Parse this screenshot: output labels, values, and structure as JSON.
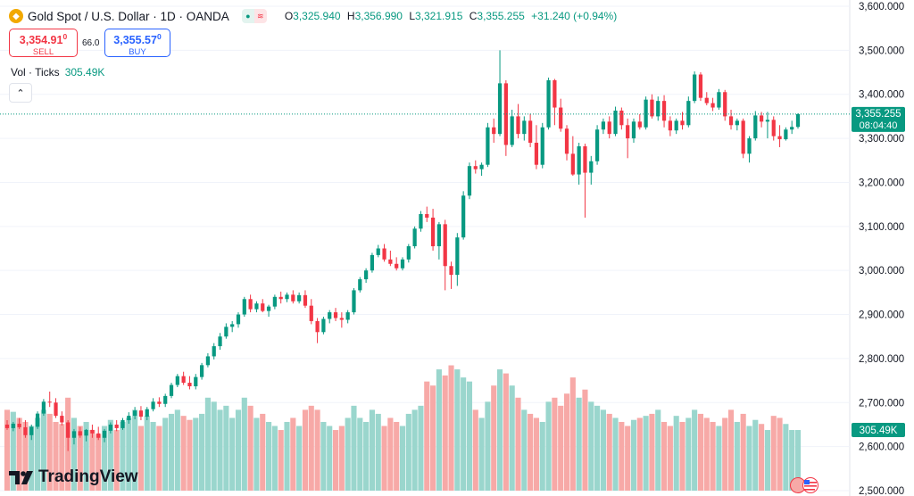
{
  "header": {
    "symbol_icon": "gold-coin-icon",
    "title": "Gold Spot / U.S. Dollar · 1D · OANDA",
    "ohlc": {
      "o_label": "O",
      "o": "3,325.940",
      "h_label": "H",
      "h": "3,356.990",
      "l_label": "L",
      "l": "3,321.915",
      "c_label": "C",
      "c": "3,355.255",
      "change": "+31.240 (+0.94%)"
    }
  },
  "trade": {
    "sell_price_main": "3,354.91",
    "sell_price_sup": "0",
    "sell_label": "SELL",
    "spread": "66.0",
    "buy_price_main": "3,355.57",
    "buy_price_sup": "0",
    "buy_label": "BUY"
  },
  "volume_legend": {
    "label": "Vol · Ticks",
    "value": "305.49K"
  },
  "brand": {
    "name": "TradingView"
  },
  "colors": {
    "up": "#089981",
    "down": "#f23645",
    "vol_up": "#9ad6cd",
    "vol_down": "#f7a9a7",
    "grid": "#f0f3fa"
  },
  "chart_data": {
    "type": "candlestick",
    "title": "Gold Spot / U.S. Dollar · 1D · OANDA",
    "ylim": [
      2500,
      3600
    ],
    "y_tick_labels": [
      "3,600.000",
      "3,500.000",
      "3,400.000",
      "3,300.000",
      "3,200.000",
      "3,100.000",
      "3,000.000",
      "2,900.000",
      "2,800.000",
      "2,700.000",
      "2,600.000",
      "2,500.000"
    ],
    "y_ticks": [
      3600,
      3500,
      3400,
      3300,
      3200,
      3100,
      3000,
      2900,
      2800,
      2700,
      2600,
      2500
    ],
    "last_price_label": "3,355.255",
    "last_price_value": 3355.255,
    "countdown": "08:04:40",
    "volume_label": "305.49K",
    "volume_max": 320,
    "candles": [
      {
        "o": 2650,
        "h": 2660,
        "l": 2638,
        "c": 2642,
        "v": 200
      },
      {
        "o": 2642,
        "h": 2656,
        "l": 2635,
        "c": 2652,
        "v": 195
      },
      {
        "o": 2652,
        "h": 2665,
        "l": 2640,
        "c": 2644,
        "v": 180
      },
      {
        "o": 2644,
        "h": 2660,
        "l": 2620,
        "c": 2626,
        "v": 170
      },
      {
        "o": 2626,
        "h": 2650,
        "l": 2615,
        "c": 2645,
        "v": 160
      },
      {
        "o": 2645,
        "h": 2680,
        "l": 2640,
        "c": 2675,
        "v": 180
      },
      {
        "o": 2675,
        "h": 2708,
        "l": 2670,
        "c": 2702,
        "v": 200
      },
      {
        "o": 2702,
        "h": 2725,
        "l": 2690,
        "c": 2700,
        "v": 190
      },
      {
        "o": 2700,
        "h": 2710,
        "l": 2665,
        "c": 2670,
        "v": 170
      },
      {
        "o": 2670,
        "h": 2680,
        "l": 2648,
        "c": 2655,
        "v": 165
      },
      {
        "o": 2655,
        "h": 2660,
        "l": 2590,
        "c": 2620,
        "v": 230
      },
      {
        "o": 2620,
        "h": 2640,
        "l": 2605,
        "c": 2635,
        "v": 180
      },
      {
        "o": 2635,
        "h": 2645,
        "l": 2620,
        "c": 2625,
        "v": 160
      },
      {
        "o": 2625,
        "h": 2640,
        "l": 2612,
        "c": 2638,
        "v": 170
      },
      {
        "o": 2638,
        "h": 2650,
        "l": 2620,
        "c": 2630,
        "v": 150
      },
      {
        "o": 2630,
        "h": 2645,
        "l": 2615,
        "c": 2620,
        "v": 140
      },
      {
        "o": 2620,
        "h": 2640,
        "l": 2610,
        "c": 2636,
        "v": 160
      },
      {
        "o": 2636,
        "h": 2655,
        "l": 2630,
        "c": 2650,
        "v": 175
      },
      {
        "o": 2650,
        "h": 2660,
        "l": 2635,
        "c": 2642,
        "v": 150
      },
      {
        "o": 2642,
        "h": 2665,
        "l": 2638,
        "c": 2660,
        "v": 170
      },
      {
        "o": 2660,
        "h": 2678,
        "l": 2652,
        "c": 2670,
        "v": 180
      },
      {
        "o": 2670,
        "h": 2690,
        "l": 2662,
        "c": 2682,
        "v": 200
      },
      {
        "o": 2682,
        "h": 2692,
        "l": 2660,
        "c": 2668,
        "v": 160
      },
      {
        "o": 2668,
        "h": 2690,
        "l": 2660,
        "c": 2685,
        "v": 185
      },
      {
        "o": 2685,
        "h": 2710,
        "l": 2680,
        "c": 2702,
        "v": 170
      },
      {
        "o": 2702,
        "h": 2712,
        "l": 2690,
        "c": 2697,
        "v": 160
      },
      {
        "o": 2697,
        "h": 2720,
        "l": 2690,
        "c": 2715,
        "v": 180
      },
      {
        "o": 2715,
        "h": 2745,
        "l": 2710,
        "c": 2740,
        "v": 190
      },
      {
        "o": 2740,
        "h": 2765,
        "l": 2735,
        "c": 2760,
        "v": 200
      },
      {
        "o": 2760,
        "h": 2770,
        "l": 2740,
        "c": 2745,
        "v": 185
      },
      {
        "o": 2745,
        "h": 2760,
        "l": 2730,
        "c": 2737,
        "v": 175
      },
      {
        "o": 2737,
        "h": 2765,
        "l": 2730,
        "c": 2758,
        "v": 180
      },
      {
        "o": 2758,
        "h": 2790,
        "l": 2752,
        "c": 2785,
        "v": 190
      },
      {
        "o": 2785,
        "h": 2812,
        "l": 2780,
        "c": 2805,
        "v": 230
      },
      {
        "o": 2805,
        "h": 2835,
        "l": 2798,
        "c": 2828,
        "v": 220
      },
      {
        "o": 2828,
        "h": 2858,
        "l": 2820,
        "c": 2850,
        "v": 200
      },
      {
        "o": 2850,
        "h": 2880,
        "l": 2845,
        "c": 2872,
        "v": 210
      },
      {
        "o": 2872,
        "h": 2885,
        "l": 2860,
        "c": 2878,
        "v": 180
      },
      {
        "o": 2878,
        "h": 2905,
        "l": 2870,
        "c": 2900,
        "v": 200
      },
      {
        "o": 2900,
        "h": 2940,
        "l": 2895,
        "c": 2935,
        "v": 230
      },
      {
        "o": 2935,
        "h": 2945,
        "l": 2905,
        "c": 2912,
        "v": 210
      },
      {
        "o": 2912,
        "h": 2930,
        "l": 2905,
        "c": 2925,
        "v": 180
      },
      {
        "o": 2925,
        "h": 2935,
        "l": 2905,
        "c": 2908,
        "v": 190
      },
      {
        "o": 2908,
        "h": 2922,
        "l": 2895,
        "c": 2918,
        "v": 170
      },
      {
        "o": 2918,
        "h": 2945,
        "l": 2912,
        "c": 2940,
        "v": 160
      },
      {
        "o": 2940,
        "h": 2952,
        "l": 2925,
        "c": 2935,
        "v": 150
      },
      {
        "o": 2935,
        "h": 2950,
        "l": 2928,
        "c": 2945,
        "v": 170
      },
      {
        "o": 2945,
        "h": 2955,
        "l": 2925,
        "c": 2930,
        "v": 180
      },
      {
        "o": 2930,
        "h": 2950,
        "l": 2925,
        "c": 2944,
        "v": 160
      },
      {
        "o": 2944,
        "h": 2955,
        "l": 2915,
        "c": 2920,
        "v": 200
      },
      {
        "o": 2920,
        "h": 2935,
        "l": 2878,
        "c": 2885,
        "v": 210
      },
      {
        "o": 2885,
        "h": 2892,
        "l": 2835,
        "c": 2860,
        "v": 200
      },
      {
        "o": 2860,
        "h": 2895,
        "l": 2855,
        "c": 2890,
        "v": 170
      },
      {
        "o": 2890,
        "h": 2910,
        "l": 2880,
        "c": 2905,
        "v": 160
      },
      {
        "o": 2905,
        "h": 2915,
        "l": 2885,
        "c": 2892,
        "v": 150
      },
      {
        "o": 2892,
        "h": 2905,
        "l": 2870,
        "c": 2888,
        "v": 160
      },
      {
        "o": 2888,
        "h": 2910,
        "l": 2880,
        "c": 2905,
        "v": 180
      },
      {
        "o": 2905,
        "h": 2960,
        "l": 2900,
        "c": 2955,
        "v": 210
      },
      {
        "o": 2955,
        "h": 2985,
        "l": 2950,
        "c": 2980,
        "v": 180
      },
      {
        "o": 2980,
        "h": 3005,
        "l": 2972,
        "c": 3000,
        "v": 170
      },
      {
        "o": 3000,
        "h": 3040,
        "l": 2995,
        "c": 3035,
        "v": 200
      },
      {
        "o": 3035,
        "h": 3058,
        "l": 3030,
        "c": 3050,
        "v": 190
      },
      {
        "o": 3050,
        "h": 3060,
        "l": 3020,
        "c": 3025,
        "v": 160
      },
      {
        "o": 3025,
        "h": 3045,
        "l": 3010,
        "c": 3015,
        "v": 180
      },
      {
        "o": 3015,
        "h": 3030,
        "l": 3000,
        "c": 3005,
        "v": 170
      },
      {
        "o": 3005,
        "h": 3030,
        "l": 3000,
        "c": 3025,
        "v": 160
      },
      {
        "o": 3025,
        "h": 3060,
        "l": 3018,
        "c": 3055,
        "v": 190
      },
      {
        "o": 3055,
        "h": 3100,
        "l": 3050,
        "c": 3095,
        "v": 200
      },
      {
        "o": 3095,
        "h": 3135,
        "l": 3088,
        "c": 3128,
        "v": 210
      },
      {
        "o": 3128,
        "h": 3145,
        "l": 3110,
        "c": 3120,
        "v": 270
      },
      {
        "o": 3120,
        "h": 3140,
        "l": 3045,
        "c": 3055,
        "v": 260
      },
      {
        "o": 3055,
        "h": 3110,
        "l": 3025,
        "c": 3105,
        "v": 300
      },
      {
        "o": 3105,
        "h": 3115,
        "l": 2955,
        "c": 3010,
        "v": 285
      },
      {
        "o": 3010,
        "h": 3020,
        "l": 2958,
        "c": 2990,
        "v": 310
      },
      {
        "o": 2990,
        "h": 3085,
        "l": 2965,
        "c": 3075,
        "v": 300
      },
      {
        "o": 3075,
        "h": 3180,
        "l": 3070,
        "c": 3170,
        "v": 280
      },
      {
        "o": 3170,
        "h": 3245,
        "l": 3162,
        "c": 3237,
        "v": 270
      },
      {
        "o": 3237,
        "h": 3250,
        "l": 3220,
        "c": 3230,
        "v": 200
      },
      {
        "o": 3230,
        "h": 3245,
        "l": 3215,
        "c": 3240,
        "v": 180
      },
      {
        "o": 3240,
        "h": 3335,
        "l": 3235,
        "c": 3325,
        "v": 220
      },
      {
        "o": 3325,
        "h": 3345,
        "l": 3290,
        "c": 3310,
        "v": 260
      },
      {
        "o": 3310,
        "h": 3500,
        "l": 3305,
        "c": 3425,
        "v": 300
      },
      {
        "o": 3425,
        "h": 3432,
        "l": 3260,
        "c": 3285,
        "v": 290
      },
      {
        "o": 3285,
        "h": 3365,
        "l": 3280,
        "c": 3350,
        "v": 260
      },
      {
        "o": 3350,
        "h": 3378,
        "l": 3300,
        "c": 3310,
        "v": 230
      },
      {
        "o": 3310,
        "h": 3350,
        "l": 3295,
        "c": 3340,
        "v": 200
      },
      {
        "o": 3340,
        "h": 3356,
        "l": 3280,
        "c": 3290,
        "v": 190
      },
      {
        "o": 3290,
        "h": 3330,
        "l": 3230,
        "c": 3240,
        "v": 180
      },
      {
        "o": 3240,
        "h": 3335,
        "l": 3232,
        "c": 3325,
        "v": 170
      },
      {
        "o": 3325,
        "h": 3438,
        "l": 3320,
        "c": 3432,
        "v": 220
      },
      {
        "o": 3432,
        "h": 3435,
        "l": 3330,
        "c": 3370,
        "v": 230
      },
      {
        "o": 3370,
        "h": 3390,
        "l": 3315,
        "c": 3322,
        "v": 210
      },
      {
        "o": 3322,
        "h": 3330,
        "l": 3250,
        "c": 3265,
        "v": 240
      },
      {
        "o": 3265,
        "h": 3305,
        "l": 3215,
        "c": 3218,
        "v": 280
      },
      {
        "o": 3218,
        "h": 3290,
        "l": 3195,
        "c": 3282,
        "v": 230
      },
      {
        "o": 3282,
        "h": 3288,
        "l": 3120,
        "c": 3222,
        "v": 250
      },
      {
        "o": 3222,
        "h": 3260,
        "l": 3195,
        "c": 3248,
        "v": 220
      },
      {
        "o": 3248,
        "h": 3330,
        "l": 3240,
        "c": 3320,
        "v": 210
      },
      {
        "o": 3320,
        "h": 3345,
        "l": 3310,
        "c": 3338,
        "v": 200
      },
      {
        "o": 3338,
        "h": 3350,
        "l": 3300,
        "c": 3310,
        "v": 190
      },
      {
        "o": 3310,
        "h": 3372,
        "l": 3305,
        "c": 3363,
        "v": 180
      },
      {
        "o": 3363,
        "h": 3370,
        "l": 3320,
        "c": 3330,
        "v": 170
      },
      {
        "o": 3330,
        "h": 3345,
        "l": 3255,
        "c": 3300,
        "v": 160
      },
      {
        "o": 3300,
        "h": 3345,
        "l": 3290,
        "c": 3338,
        "v": 175
      },
      {
        "o": 3338,
        "h": 3355,
        "l": 3320,
        "c": 3325,
        "v": 180
      },
      {
        "o": 3325,
        "h": 3395,
        "l": 3320,
        "c": 3388,
        "v": 185
      },
      {
        "o": 3388,
        "h": 3400,
        "l": 3345,
        "c": 3350,
        "v": 190
      },
      {
        "o": 3350,
        "h": 3395,
        "l": 3340,
        "c": 3385,
        "v": 200
      },
      {
        "o": 3385,
        "h": 3398,
        "l": 3325,
        "c": 3340,
        "v": 170
      },
      {
        "o": 3340,
        "h": 3350,
        "l": 3305,
        "c": 3318,
        "v": 160
      },
      {
        "o": 3318,
        "h": 3345,
        "l": 3310,
        "c": 3340,
        "v": 185
      },
      {
        "o": 3340,
        "h": 3360,
        "l": 3320,
        "c": 3330,
        "v": 170
      },
      {
        "o": 3330,
        "h": 3395,
        "l": 3325,
        "c": 3385,
        "v": 180
      },
      {
        "o": 3385,
        "h": 3452,
        "l": 3380,
        "c": 3445,
        "v": 200
      },
      {
        "o": 3445,
        "h": 3450,
        "l": 3385,
        "c": 3392,
        "v": 190
      },
      {
        "o": 3392,
        "h": 3405,
        "l": 3375,
        "c": 3380,
        "v": 180
      },
      {
        "o": 3380,
        "h": 3392,
        "l": 3362,
        "c": 3370,
        "v": 170
      },
      {
        "o": 3370,
        "h": 3412,
        "l": 3365,
        "c": 3405,
        "v": 160
      },
      {
        "o": 3405,
        "h": 3410,
        "l": 3340,
        "c": 3350,
        "v": 180
      },
      {
        "o": 3350,
        "h": 3365,
        "l": 3320,
        "c": 3330,
        "v": 200
      },
      {
        "o": 3330,
        "h": 3345,
        "l": 3318,
        "c": 3340,
        "v": 170
      },
      {
        "o": 3340,
        "h": 3345,
        "l": 3255,
        "c": 3265,
        "v": 190
      },
      {
        "o": 3265,
        "h": 3305,
        "l": 3245,
        "c": 3300,
        "v": 160
      },
      {
        "o": 3300,
        "h": 3362,
        "l": 3295,
        "c": 3352,
        "v": 175
      },
      {
        "o": 3352,
        "h": 3360,
        "l": 3325,
        "c": 3338,
        "v": 165
      },
      {
        "o": 3338,
        "h": 3360,
        "l": 3300,
        "c": 3342,
        "v": 150
      },
      {
        "o": 3342,
        "h": 3350,
        "l": 3295,
        "c": 3305,
        "v": 185
      },
      {
        "o": 3305,
        "h": 3330,
        "l": 3280,
        "c": 3298,
        "v": 180
      },
      {
        "o": 3298,
        "h": 3325,
        "l": 3295,
        "c": 3320,
        "v": 165
      },
      {
        "o": 3320,
        "h": 3340,
        "l": 3310,
        "c": 3326,
        "v": 150
      },
      {
        "o": 3326,
        "h": 3357,
        "l": 3322,
        "c": 3355,
        "v": 150
      }
    ]
  }
}
